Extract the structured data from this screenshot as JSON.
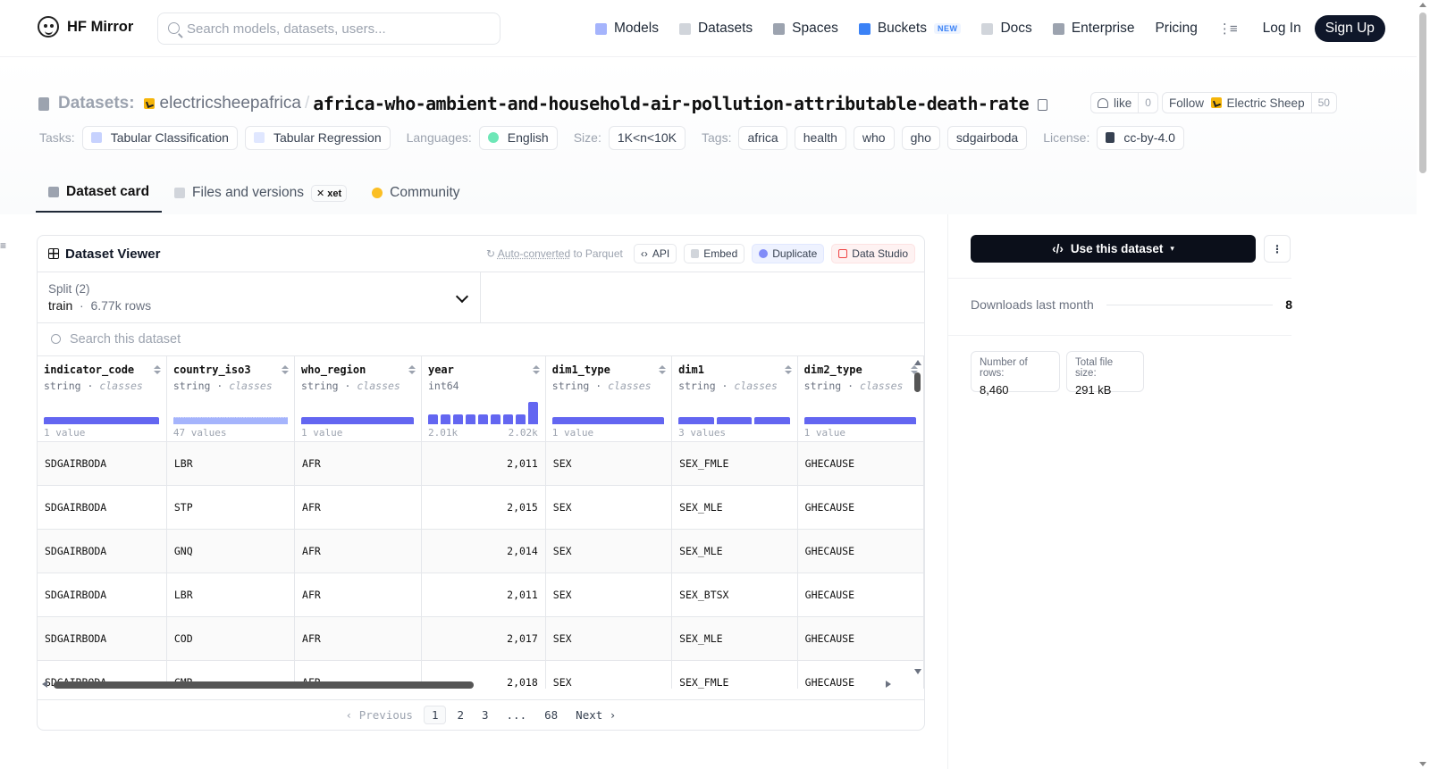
{
  "nav": {
    "brand": "HF Mirror",
    "search_placeholder": "Search models, datasets, users...",
    "links": [
      {
        "label": "Models",
        "icon": "models-icon",
        "color": "#a5b4fc"
      },
      {
        "label": "Datasets",
        "icon": "datasets-icon",
        "color": "#d1d5db"
      },
      {
        "label": "Spaces",
        "icon": "spaces-icon",
        "color": "#9ca3af"
      },
      {
        "label": "Buckets",
        "icon": "buckets-icon",
        "color": "#3b82f6",
        "badge": "NEW"
      },
      {
        "label": "Docs",
        "icon": "docs-icon",
        "color": "#d1d5db"
      },
      {
        "label": "Enterprise",
        "icon": "enterprise-icon",
        "color": "#9ca3af"
      },
      {
        "label": "Pricing"
      }
    ],
    "login": "Log In",
    "signup": "Sign Up"
  },
  "header": {
    "section_label": "Datasets:",
    "org": "electricsheepafrica",
    "dataset_name": "africa-who-ambient-and-household-air-pollution-attributable-death-rate",
    "like_label": "like",
    "like_count": "0",
    "follow_label": "Follow",
    "follow_org": "Electric Sheep",
    "follow_count": "50"
  },
  "tags": {
    "tasks_label": "Tasks:",
    "tasks": [
      "Tabular Classification",
      "Tabular Regression"
    ],
    "languages_label": "Languages:",
    "language": "English",
    "size_label": "Size:",
    "size": "1K<n<10K",
    "tags_label": "Tags:",
    "tags": [
      "africa",
      "health",
      "who",
      "gho",
      "sdgairboda"
    ],
    "license_label": "License:",
    "license": "cc-by-4.0"
  },
  "tabs": {
    "card": "Dataset card",
    "files": "Files and versions",
    "xet": "xet",
    "community": "Community"
  },
  "viewer": {
    "title": "Dataset Viewer",
    "auto_converted": "Auto-converted",
    "to_parquet": " to Parquet",
    "api": "API",
    "embed": "Embed",
    "duplicate": "Duplicate",
    "data_studio": "Data Studio",
    "split_label": "Split (2)",
    "split_value": "train",
    "split_rows": "6.77k rows",
    "search_placeholder": "Search this dataset",
    "columns": [
      {
        "name": "indicator_code",
        "type": "string",
        "kind": "classes",
        "summary": "1 value",
        "hist": [
          1.0
        ]
      },
      {
        "name": "country_iso3",
        "type": "string",
        "kind": "classes",
        "summary": "47 values",
        "hist": "many"
      },
      {
        "name": "who_region",
        "type": "string",
        "kind": "classes",
        "summary": "1 value",
        "hist": [
          1.0
        ]
      },
      {
        "name": "year",
        "type": "int64",
        "kind": "",
        "summary_min": "2.01k",
        "summary_max": "2.02k",
        "hist": [
          0.45,
          0.45,
          0.45,
          0.45,
          0.45,
          0.45,
          0.45,
          0.45,
          1.0
        ]
      },
      {
        "name": "dim1_type",
        "type": "string",
        "kind": "classes",
        "summary": "1 value",
        "hist": [
          1.0
        ]
      },
      {
        "name": "dim1",
        "type": "string",
        "kind": "classes",
        "summary": "3 values",
        "hist": [
          1.0,
          1.0,
          1.0
        ]
      },
      {
        "name": "dim2_type",
        "type": "string",
        "kind": "classes",
        "summary": "1 value",
        "hist": [
          1.0
        ]
      }
    ],
    "rows": [
      [
        "SDGAIRBODA",
        "LBR",
        "AFR",
        "2,011",
        "SEX",
        "SEX_FMLE",
        "GHECAUSE"
      ],
      [
        "SDGAIRBODA",
        "STP",
        "AFR",
        "2,015",
        "SEX",
        "SEX_MLE",
        "GHECAUSE"
      ],
      [
        "SDGAIRBODA",
        "GNQ",
        "AFR",
        "2,014",
        "SEX",
        "SEX_MLE",
        "GHECAUSE"
      ],
      [
        "SDGAIRBODA",
        "LBR",
        "AFR",
        "2,011",
        "SEX",
        "SEX_BTSX",
        "GHECAUSE"
      ],
      [
        "SDGAIRBODA",
        "COD",
        "AFR",
        "2,017",
        "SEX",
        "SEX_MLE",
        "GHECAUSE"
      ],
      [
        "SDGAIRBODA",
        "CMR",
        "AFR",
        "2,018",
        "SEX",
        "SEX_FMLE",
        "GHECAUSE"
      ]
    ],
    "pager": {
      "prev": "‹ Previous",
      "pages": [
        "1",
        "2",
        "3",
        "...",
        "68"
      ],
      "current": "1",
      "next": "Next ›"
    }
  },
  "sidebar": {
    "use_button": "Use this dataset",
    "downloads_label": "Downloads last month",
    "downloads_value": "8",
    "rows_label": "Number of rows:",
    "rows_value": "8,460",
    "filesize_label": "Total file size:",
    "filesize_value": "291 kB"
  },
  "colors": {
    "accent": "#6366f1",
    "dark": "#0f172a",
    "org_avatar": "#f5b50a"
  }
}
